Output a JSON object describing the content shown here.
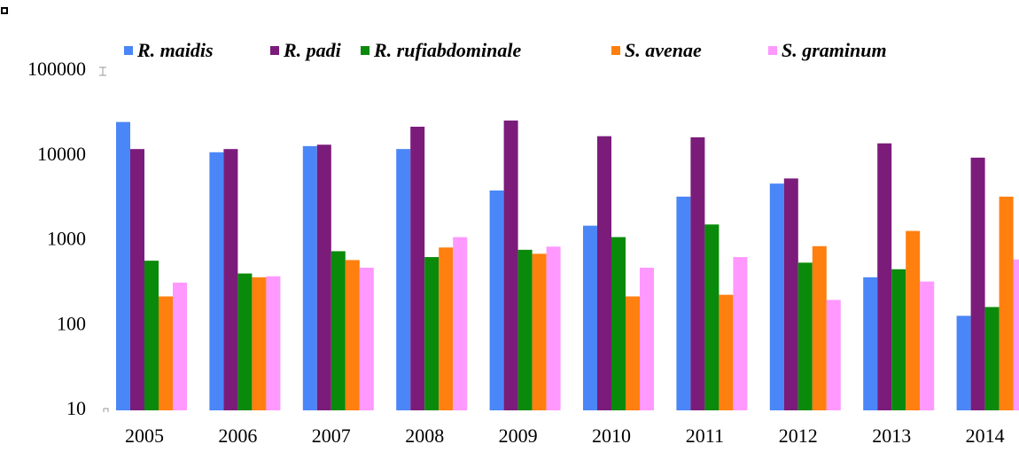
{
  "chart_data": {
    "type": "bar",
    "log_scale": true,
    "categories": [
      "2005",
      "2006",
      "2007",
      "2008",
      "2009",
      "2010",
      "2011",
      "2012",
      "2013",
      "2014"
    ],
    "series": [
      {
        "name": "R. maidis",
        "color": "#4a86f7",
        "values": [
          25000,
          11000,
          13000,
          12000,
          3900,
          1500,
          3300,
          4700,
          370,
          130
        ]
      },
      {
        "name": "R. padi",
        "color": "#7b1c7b",
        "values": [
          12000,
          12000,
          13500,
          22000,
          26000,
          17000,
          16500,
          5400,
          14000,
          9500
        ]
      },
      {
        "name": "R. rufiabdominale",
        "color": "#0a8a0a",
        "values": [
          580,
          410,
          750,
          640,
          780,
          1100,
          1550,
          550,
          460,
          165
        ]
      },
      {
        "name": "S. avenae",
        "color": "#ff7f0f",
        "values": [
          220,
          370,
          590,
          830,
          700,
          220,
          230,
          860,
          1300,
          3300
        ]
      },
      {
        "name": "S. graminum",
        "color": "#ff99ff",
        "values": [
          320,
          380,
          480,
          1100,
          850,
          480,
          640,
          200,
          330,
          600
        ]
      }
    ],
    "ylim": [
      10,
      100000
    ],
    "yticks": [
      10,
      100,
      1000,
      10000,
      100000
    ],
    "legend": "top"
  }
}
